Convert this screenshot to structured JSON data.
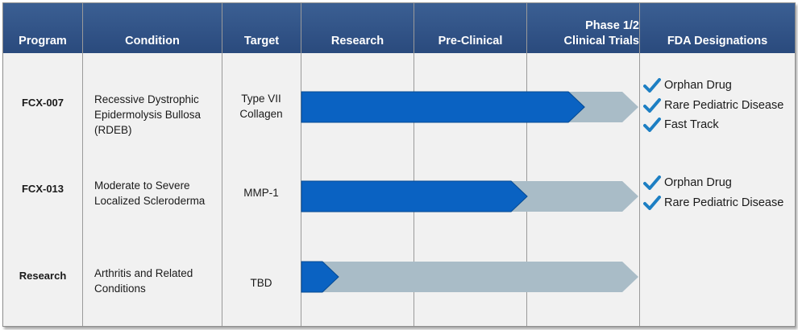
{
  "colors": {
    "header_bg": "#2f5187",
    "progress_bar": "#0a62c2",
    "remaining_bar": "#a9bcc7",
    "check": "#1d7fc3",
    "body_bg": "#f1f1f1"
  },
  "header": {
    "program": "Program",
    "condition": "Condition",
    "target": "Target",
    "research": "Research",
    "preclinical": "Pre-Clinical",
    "phase_line1": "Phase 1/2",
    "phase_line2": "Clinical Trials",
    "fda": "FDA Designations"
  },
  "rows": [
    {
      "program": "FCX-007",
      "condition": [
        "Recessive Dystrophic",
        "Epidermolysis Bullosa",
        "(RDEB)"
      ],
      "target": [
        "Type VII",
        "Collagen"
      ],
      "progress": 0.84,
      "designations": [
        "Orphan Drug",
        "Rare Pediatric Disease",
        "Fast Track"
      ]
    },
    {
      "program": "FCX-013",
      "condition": [
        "Moderate to Severe",
        "Localized Scleroderma"
      ],
      "target": [
        "MMP-1"
      ],
      "progress": 0.67,
      "designations": [
        "Orphan Drug",
        "Rare Pediatric Disease"
      ]
    },
    {
      "program": "Research",
      "condition": [
        "Arthritis and Related",
        "Conditions"
      ],
      "target": [
        "TBD"
      ],
      "progress": 0.11,
      "designations": []
    }
  ]
}
